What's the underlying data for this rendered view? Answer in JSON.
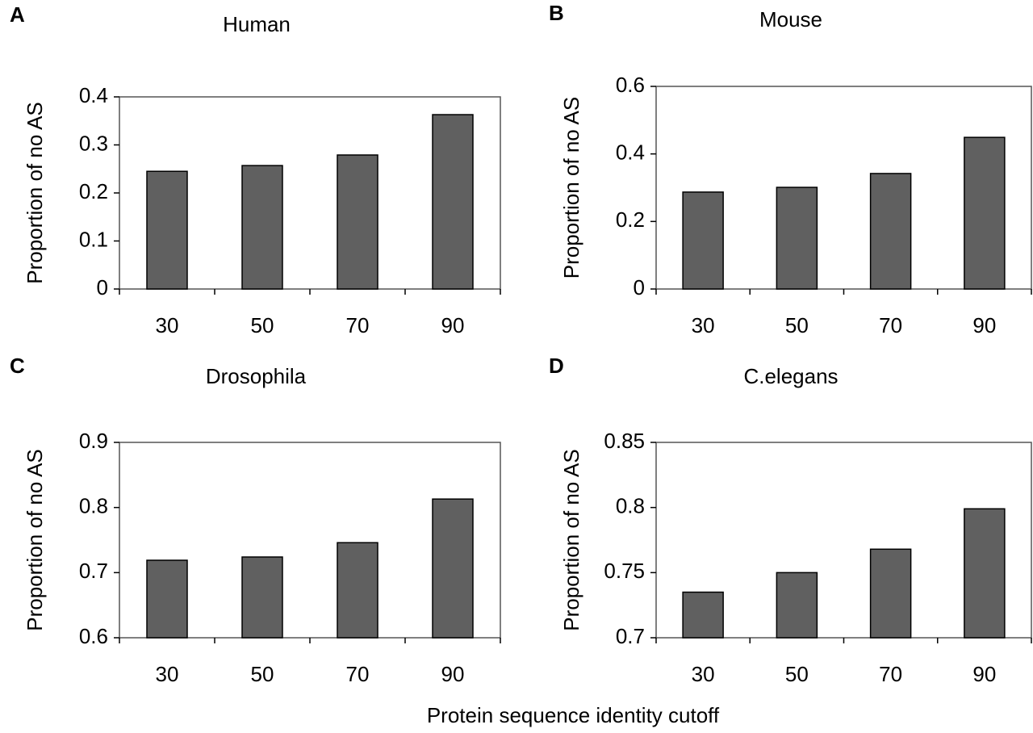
{
  "chart_data": [
    {
      "type": "bar",
      "panel_label": "A",
      "title": "Human",
      "ylabel": "Proportion of no AS",
      "categories": [
        "30",
        "50",
        "70",
        "90"
      ],
      "values": [
        0.245,
        0.257,
        0.279,
        0.363
      ],
      "color": "#606060",
      "ylim": [
        0,
        0.4
      ],
      "yticks": [
        0,
        0.1,
        0.2,
        0.3,
        0.4
      ]
    },
    {
      "type": "bar",
      "panel_label": "B",
      "title": "Mouse",
      "ylabel": "Proportion of no AS",
      "categories": [
        "30",
        "50",
        "70",
        "90"
      ],
      "values": [
        0.287,
        0.301,
        0.342,
        0.449
      ],
      "color": "#606060",
      "ylim": [
        0,
        0.6
      ],
      "yticks": [
        0,
        0.2,
        0.4,
        0.6
      ]
    },
    {
      "type": "bar",
      "panel_label": "C",
      "title": "Drosophila",
      "ylabel": "Proportion of no AS",
      "categories": [
        "30",
        "50",
        "70",
        "90"
      ],
      "values": [
        0.719,
        0.724,
        0.746,
        0.813
      ],
      "color": "#606060",
      "ylim": [
        0.6,
        0.9
      ],
      "yticks": [
        0.6,
        0.7,
        0.8,
        0.9
      ]
    },
    {
      "type": "bar",
      "panel_label": "D",
      "title": "C.elegans",
      "ylabel": "Proportion of no AS",
      "categories": [
        "30",
        "50",
        "70",
        "90"
      ],
      "values": [
        0.735,
        0.75,
        0.768,
        0.799
      ],
      "color": "#606060",
      "ylim": [
        0.7,
        0.85
      ],
      "yticks": [
        0.7,
        0.75,
        0.8,
        0.85
      ]
    }
  ],
  "xlabel": "Protein sequence identity cutoff"
}
